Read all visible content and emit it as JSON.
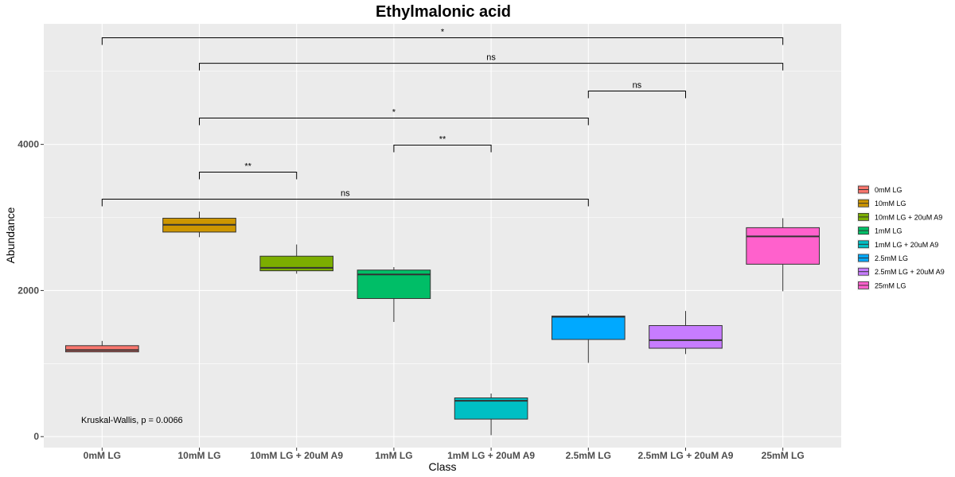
{
  "chart_data": {
    "type": "box",
    "title": "Ethylmalonic acid",
    "xlabel": "Class",
    "ylabel": "Abundance",
    "ylim": [
      -150,
      5650
    ],
    "y_ticks": [
      0,
      2000,
      4000
    ],
    "grid": true,
    "legend_position": "right",
    "categories": [
      "0mM LG",
      "10mM LG",
      "10mM LG + 20uM A9",
      "1mM LG",
      "1mM LG + 20uM A9",
      "2.5mM LG",
      "2.5mM LG + 20uM A9",
      "25mM LG"
    ],
    "colors": [
      "#F8766D",
      "#CD9600",
      "#7CAE00",
      "#00BE67",
      "#00BFC4",
      "#00A9FF",
      "#C77CFF",
      "#FF61CC"
    ],
    "boxes": [
      {
        "whisker_low": 1155,
        "q1": 1160,
        "median": 1185,
        "q3": 1245,
        "whisker_high": 1310
      },
      {
        "whisker_low": 2730,
        "q1": 2800,
        "median": 2900,
        "q3": 2990,
        "whisker_high": 3080
      },
      {
        "whisker_low": 2230,
        "q1": 2270,
        "median": 2310,
        "q3": 2470,
        "whisker_high": 2630
      },
      {
        "whisker_low": 1570,
        "q1": 1890,
        "median": 2220,
        "q3": 2280,
        "whisker_high": 2320
      },
      {
        "whisker_low": 20,
        "q1": 240,
        "median": 490,
        "q3": 530,
        "whisker_high": 590
      },
      {
        "whisker_low": 1010,
        "q1": 1330,
        "median": 1640,
        "q3": 1650,
        "whisker_high": 1680
      },
      {
        "whisker_low": 1130,
        "q1": 1210,
        "median": 1320,
        "q3": 1520,
        "whisker_high": 1720
      },
      {
        "whisker_low": 1990,
        "q1": 2360,
        "median": 2740,
        "q3": 2860,
        "whisker_high": 2990
      }
    ],
    "comparisons": [
      {
        "from": "0mM LG",
        "to": "25mM LG",
        "y": 5460,
        "label": "*"
      },
      {
        "from": "10mM LG",
        "to": "25mM LG",
        "y": 5110,
        "label": "ns"
      },
      {
        "from": "2.5mM LG",
        "to": "2.5mM LG + 20uM A9",
        "y": 4730,
        "label": "ns"
      },
      {
        "from": "10mM LG",
        "to": "2.5mM LG",
        "y": 4360,
        "label": "*"
      },
      {
        "from": "1mM LG",
        "to": "1mM LG + 20uM A9",
        "y": 3990,
        "label": "**"
      },
      {
        "from": "10mM LG",
        "to": "10mM LG + 20uM A9",
        "y": 3620,
        "label": "**"
      },
      {
        "from": "0mM LG",
        "to": "2.5mM LG",
        "y": 3250,
        "label": "ns"
      }
    ],
    "annotation": "Kruskal-Wallis, p = 0.0066"
  }
}
